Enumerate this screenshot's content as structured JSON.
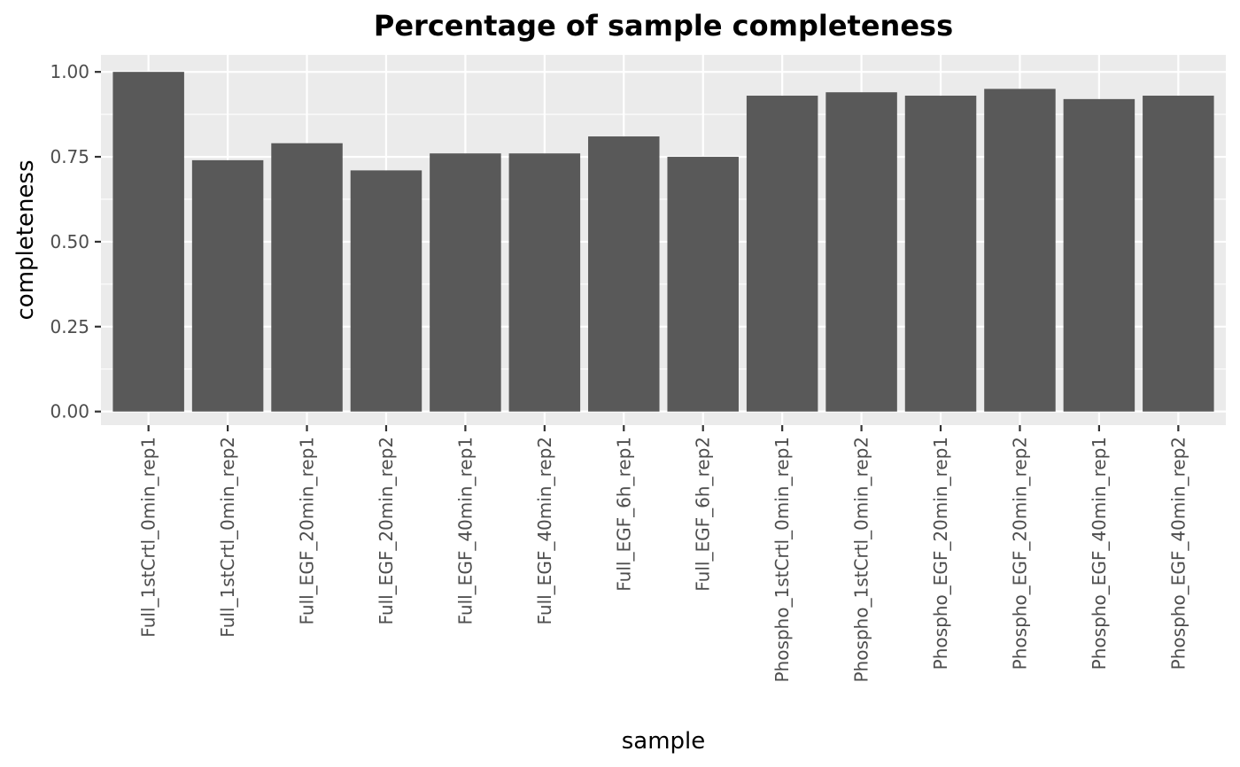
{
  "chart_data": {
    "type": "bar",
    "title": "Percentage of sample completeness",
    "xlabel": "sample",
    "ylabel": "completeness",
    "ylim": [
      -0.04,
      1.05
    ],
    "yticks": [
      0.0,
      0.25,
      0.5,
      0.75,
      1.0
    ],
    "ytick_labels": [
      "0.00",
      "0.25",
      "0.50",
      "0.75",
      "1.00"
    ],
    "grid": true,
    "legend": "none",
    "categories": [
      "Full_1stCrtl_0min_rep1",
      "Full_1stCrtl_0min_rep2",
      "Full_EGF_20min_rep1",
      "Full_EGF_20min_rep2",
      "Full_EGF_40min_rep1",
      "Full_EGF_40min_rep2",
      "Full_EGF_6h_rep1",
      "Full_EGF_6h_rep2",
      "Phospho_1stCrtl_0min_rep1",
      "Phospho_1stCrtl_0min_rep2",
      "Phospho_EGF_20min_rep1",
      "Phospho_EGF_20min_rep2",
      "Phospho_EGF_40min_rep1",
      "Phospho_EGF_40min_rep2"
    ],
    "values": [
      1.0,
      0.74,
      0.79,
      0.71,
      0.76,
      0.76,
      0.81,
      0.75,
      0.93,
      0.94,
      0.93,
      0.95,
      0.92,
      0.93
    ],
    "colors": {
      "bar": "#595959",
      "panel": "#ebebeb",
      "grid_major": "#ffffff",
      "tick": "#333333"
    }
  }
}
